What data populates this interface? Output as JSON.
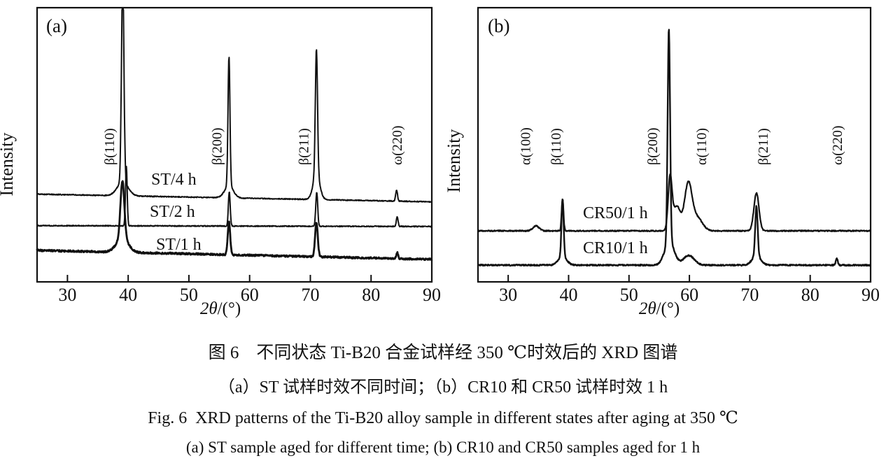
{
  "figure": {
    "kind": "XRD patterns figure with two panels"
  },
  "captions": {
    "cn_title": "图 6　不同状态 Ti-B20 合金试样经 350 ℃时效后的 XRD 图谱",
    "cn_sub": "（a）ST 试样时效不同时间；（b）CR10 和 CR50 试样时效 1 h",
    "en_title": "Fig. 6  XRD patterns of the Ti-B20 alloy sample in different states after aging at 350 ℃",
    "en_sub": "(a) ST sample aged for different time; (b) CR10 and CR50 samples aged for 1 h"
  },
  "chart_data": [
    {
      "id": "a",
      "type": "line",
      "panel_label": "(a)",
      "xlabel": "2θ/(°)",
      "ylabel": "Intensity",
      "xlim": [
        25,
        90
      ],
      "x_ticks": [
        30,
        40,
        50,
        60,
        70,
        80,
        90
      ],
      "grid": false,
      "line_color": "#111111",
      "y_axis_unlabeled": true,
      "peak_labels": [
        {
          "text": "β(110)",
          "two_theta": 36.5
        },
        {
          "text": "β(200)",
          "two_theta": 54.2
        },
        {
          "text": "β(211)",
          "two_theta": 68.5
        },
        {
          "text": "ω(220)",
          "two_theta": 83.9
        }
      ],
      "series": [
        {
          "label": "ST/4 h",
          "baseline_start": 0.32,
          "baseline_end": 0.292,
          "noise": 1.3,
          "stroke_width": 2.0,
          "peaks": [
            {
              "two_theta": 39.1,
              "height": 0.75,
              "width": 0.2
            },
            {
              "two_theta": 39.1,
              "height": 0.05,
              "width": 0.9
            },
            {
              "two_theta": 56.6,
              "height": 0.47,
              "width": 0.16
            },
            {
              "two_theta": 56.6,
              "height": 0.045,
              "width": 0.7
            },
            {
              "two_theta": 71.0,
              "height": 0.46,
              "width": 0.18
            },
            {
              "two_theta": 71.0,
              "height": 0.09,
              "width": 0.55
            },
            {
              "two_theta": 84.2,
              "height": 0.04,
              "width": 0.15
            }
          ]
        },
        {
          "label": "ST/2 h",
          "baseline_start": 0.205,
          "baseline_end": 0.202,
          "noise": 1.3,
          "stroke_width": 2.0,
          "peaks": [
            {
              "two_theta": 39.7,
              "height": 0.215,
              "width": 0.14
            },
            {
              "two_theta": 56.65,
              "height": 0.125,
              "width": 0.15
            },
            {
              "two_theta": 71.05,
              "height": 0.125,
              "width": 0.16
            },
            {
              "two_theta": 84.3,
              "height": 0.036,
              "width": 0.14
            }
          ]
        },
        {
          "label": "ST/1 h",
          "baseline_start": 0.115,
          "baseline_end": 0.082,
          "noise": 2.4,
          "stroke_width": 2.8,
          "peaks": [
            {
              "two_theta": 39.05,
              "height": 0.21,
              "width": 0.32
            },
            {
              "two_theta": 39.05,
              "height": 0.05,
              "width": 1.0
            },
            {
              "two_theta": 56.6,
              "height": 0.12,
              "width": 0.2
            },
            {
              "two_theta": 71.0,
              "height": 0.125,
              "width": 0.22
            },
            {
              "two_theta": 84.3,
              "height": 0.022,
              "width": 0.15
            }
          ]
        }
      ]
    },
    {
      "id": "b",
      "type": "line",
      "panel_label": "(b)",
      "xlabel": "2θ/(°)",
      "ylabel": "Intensity",
      "xlim": [
        25,
        90
      ],
      "x_ticks": [
        30,
        40,
        50,
        60,
        70,
        80,
        90
      ],
      "grid": false,
      "line_color": "#111111",
      "y_axis_unlabeled": true,
      "peak_labels": [
        {
          "text": "α(100)",
          "two_theta": 32.5
        },
        {
          "text": "β(110)",
          "two_theta": 37.5
        },
        {
          "text": "β(200)",
          "two_theta": 53.5
        },
        {
          "text": "α(110)",
          "two_theta": 61.6
        },
        {
          "text": "β(211)",
          "two_theta": 71.8
        },
        {
          "text": "ω(220)",
          "two_theta": 84.1
        }
      ],
      "series": [
        {
          "label": "CR50/1 h",
          "baseline_start": 0.186,
          "baseline_end": 0.186,
          "noise": 1.6,
          "stroke_width": 2.2,
          "peaks": [
            {
              "two_theta": 34.6,
              "height": 0.018,
              "width": 0.5
            },
            {
              "two_theta": 39.0,
              "height": 0.115,
              "width": 0.16
            },
            {
              "two_theta": 56.8,
              "height": 0.19,
              "width": 0.32
            },
            {
              "two_theta": 57.9,
              "height": 0.09,
              "width": 0.6
            },
            {
              "two_theta": 59.8,
              "height": 0.165,
              "width": 0.6
            },
            {
              "two_theta": 61.2,
              "height": 0.05,
              "width": 0.9
            },
            {
              "two_theta": 71.1,
              "height": 0.138,
              "width": 0.42
            }
          ]
        },
        {
          "label": "CR10/1 h",
          "baseline_start": 0.061,
          "baseline_end": 0.061,
          "noise": 1.8,
          "stroke_width": 2.4,
          "peaks": [
            {
              "two_theta": 39.0,
              "height": 0.21,
              "width": 0.18
            },
            {
              "two_theta": 39.0,
              "height": 0.03,
              "width": 0.7
            },
            {
              "two_theta": 56.6,
              "height": 0.78,
              "width": 0.2
            },
            {
              "two_theta": 56.7,
              "height": 0.085,
              "width": 0.8
            },
            {
              "two_theta": 59.9,
              "height": 0.035,
              "width": 0.9
            },
            {
              "two_theta": 71.1,
              "height": 0.18,
              "width": 0.2
            },
            {
              "two_theta": 71.1,
              "height": 0.035,
              "width": 0.7
            },
            {
              "two_theta": 84.4,
              "height": 0.024,
              "width": 0.16
            }
          ]
        }
      ]
    }
  ]
}
